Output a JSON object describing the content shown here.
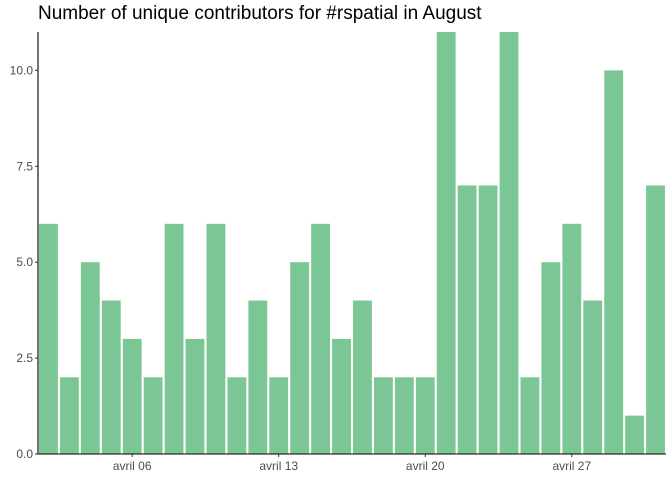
{
  "chart_data": {
    "type": "bar",
    "title": "Number of unique contributors for #rspatial in August",
    "xlabel": "",
    "ylabel": "",
    "bar_color": "#7ac695",
    "ylim": [
      0,
      11
    ],
    "y_ticks": [
      0,
      2.5,
      5,
      7.5,
      10
    ],
    "y_tick_labels": [
      "0.0",
      "2.5",
      "5.0",
      "7.5",
      "10.0"
    ],
    "x_start_day": 2,
    "x_ticks": [
      {
        "day": 6,
        "label": "avril 06"
      },
      {
        "day": 13,
        "label": "avril 13"
      },
      {
        "day": 20,
        "label": "avril 20"
      },
      {
        "day": 27,
        "label": "avril 27"
      }
    ],
    "values": [
      6,
      2,
      5,
      4,
      3,
      2,
      6,
      3,
      6,
      2,
      4,
      2,
      5,
      6,
      3,
      4,
      2,
      2,
      2,
      11,
      7,
      7,
      11,
      2,
      5,
      6,
      4,
      10,
      1,
      7
    ]
  }
}
